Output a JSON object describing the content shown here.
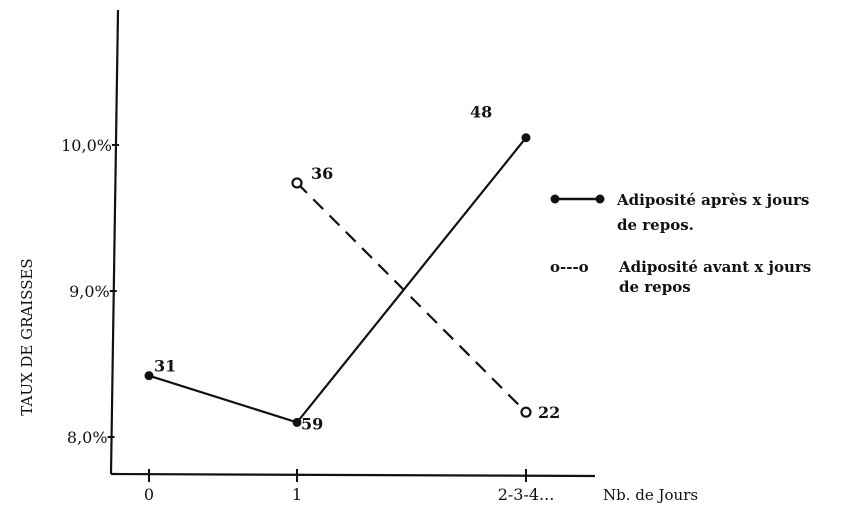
{
  "chart_data": {
    "type": "line",
    "categories": [
      "0",
      "1",
      "2-3-4..."
    ],
    "xlabel": "Nb. de Jours",
    "ylabel": "TAUX DE GRAISSES",
    "y_ticks": [
      "8,0%",
      "9,0%",
      "10,0%"
    ],
    "ylim": [
      7.8,
      10.3
    ],
    "grid": false,
    "legend_position": "right",
    "series": [
      {
        "name": "Adiposité après x jours de repos.",
        "name_lines": [
          "Adiposité après x jours",
          "de repos."
        ],
        "legend_symbol": "●——●",
        "style": "solid",
        "marker": "filled",
        "x": [
          "0",
          "1",
          "2-3-4..."
        ],
        "values": [
          8.42,
          8.1,
          10.05
        ],
        "labels": [
          "31",
          "59",
          "48"
        ]
      },
      {
        "name": "Adiposité avant x jours de repos",
        "name_lines": [
          "Adiposité avant x jours",
          "de repos"
        ],
        "legend_symbol": "o---o",
        "style": "dashed",
        "marker": "open",
        "x": [
          "1",
          "2-3-4..."
        ],
        "values": [
          9.74,
          8.17
        ],
        "labels": [
          "36",
          "22"
        ]
      }
    ]
  }
}
